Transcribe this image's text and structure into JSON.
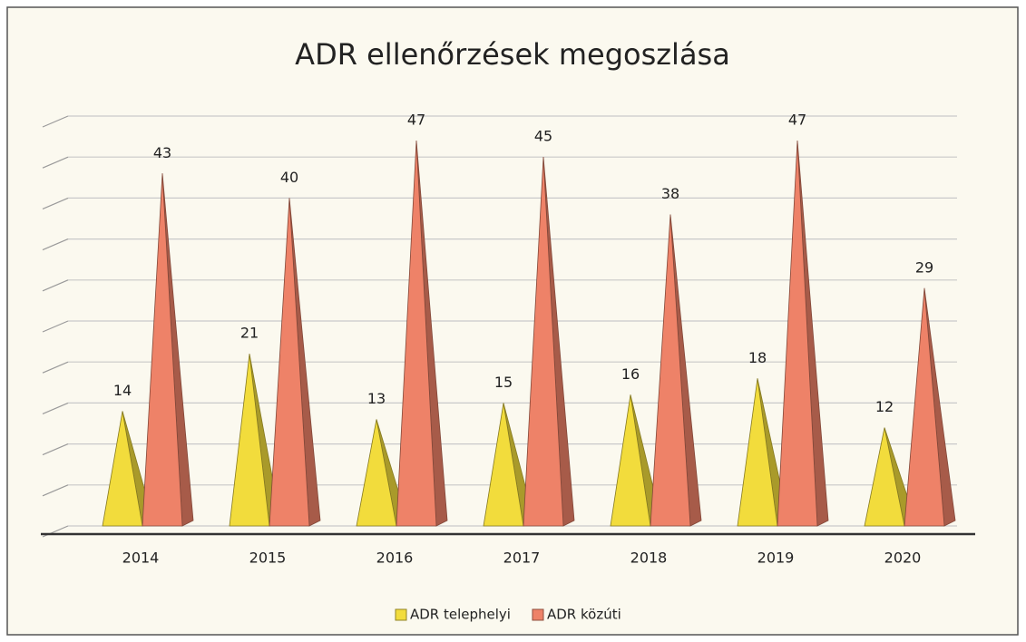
{
  "chart_data": {
    "type": "pyramid",
    "title": "ADR ellenőrzések megoszlása",
    "categories": [
      "2014",
      "2015",
      "2016",
      "2017",
      "2018",
      "2019",
      "2020"
    ],
    "series": [
      {
        "name": "ADR telephelyi",
        "color": "#f2dc3c",
        "values": [
          14,
          21,
          13,
          15,
          16,
          18,
          12
        ]
      },
      {
        "name": "ADR közúti",
        "color": "#ee8268",
        "values": [
          43,
          40,
          47,
          45,
          38,
          47,
          29
        ]
      }
    ],
    "ylim": [
      0,
      50
    ],
    "yticks": [
      0,
      5,
      10,
      15,
      20,
      25,
      30,
      35,
      40,
      45,
      50
    ],
    "grid": true,
    "legend": "bottom"
  }
}
